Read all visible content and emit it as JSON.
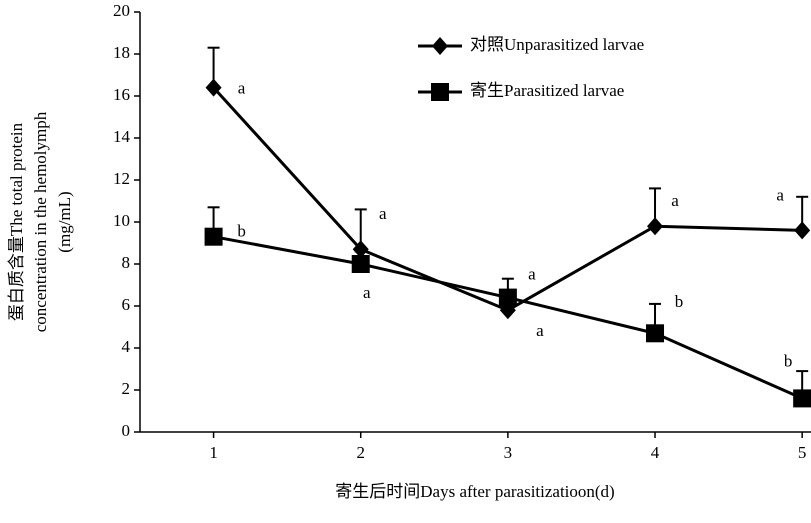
{
  "chart_data": {
    "type": "line",
    "x_label": "寄生后时间Days after parasitizatioon(d)",
    "y_label": [
      "蛋白质含量The total protein",
      "concentration in the hemolymph",
      "(mg/mL)"
    ],
    "x": [
      1,
      2,
      3,
      4,
      5
    ],
    "xlim": [
      0.5,
      5.06
    ],
    "xticks": [
      1,
      2,
      3,
      4,
      5
    ],
    "ylim": [
      0,
      20
    ],
    "yticks": [
      0,
      2,
      4,
      6,
      8,
      10,
      12,
      14,
      16,
      18,
      20
    ],
    "legend": "upper right",
    "series": [
      {
        "name": "对照Unparasitized larvae",
        "color": "#000000",
        "marker": "diamond",
        "values": [
          16.4,
          8.7,
          5.8,
          9.8,
          9.6
        ],
        "errors": [
          1.9,
          1.9,
          0.9,
          1.8,
          1.6
        ],
        "labels": [
          "a",
          "a",
          "a",
          "a",
          "a"
        ]
      },
      {
        "name": "寄生Parasitized larvae",
        "color": "#000000",
        "marker": "square",
        "values": [
          9.3,
          8.0,
          6.4,
          4.7,
          1.6
        ],
        "errors": [
          1.4,
          0.6,
          0.9,
          1.4,
          1.3
        ],
        "labels": [
          "b",
          "a",
          "a",
          "b",
          "b"
        ]
      }
    ]
  }
}
